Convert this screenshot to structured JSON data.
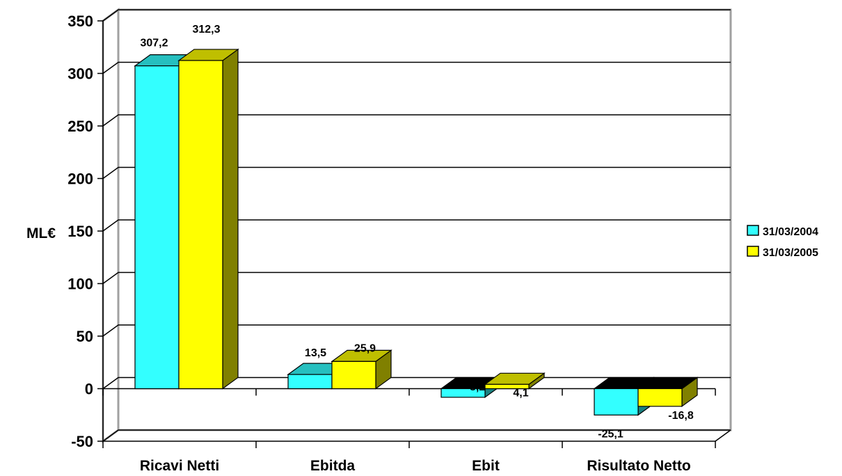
{
  "chart_data": {
    "type": "bar",
    "style": "3d-clustered",
    "categories": [
      "Ricavi Netti",
      "Ebitda",
      "Ebit",
      "Risultato Netto"
    ],
    "series": [
      {
        "name": "31/03/2004",
        "values": [
          307.2,
          13.5,
          -8.2,
          -25.1
        ],
        "labels": [
          "307,2",
          "13,5",
          "-8,2",
          "-25,1"
        ],
        "color": "#33ffff"
      },
      {
        "name": "31/03/2005",
        "values": [
          312.3,
          25.9,
          4.1,
          -16.8
        ],
        "labels": [
          "312,3",
          "25,9",
          "4,1",
          "-16,8"
        ],
        "color": "#ffff00"
      }
    ],
    "ylabel": "ML€",
    "xlabel": "",
    "title": "",
    "ylim": [
      -50,
      350
    ],
    "yticks": [
      "350",
      "300",
      "250",
      "200",
      "150",
      "100",
      "50",
      "0",
      "-50"
    ],
    "grid": true,
    "legend_position": "right"
  }
}
